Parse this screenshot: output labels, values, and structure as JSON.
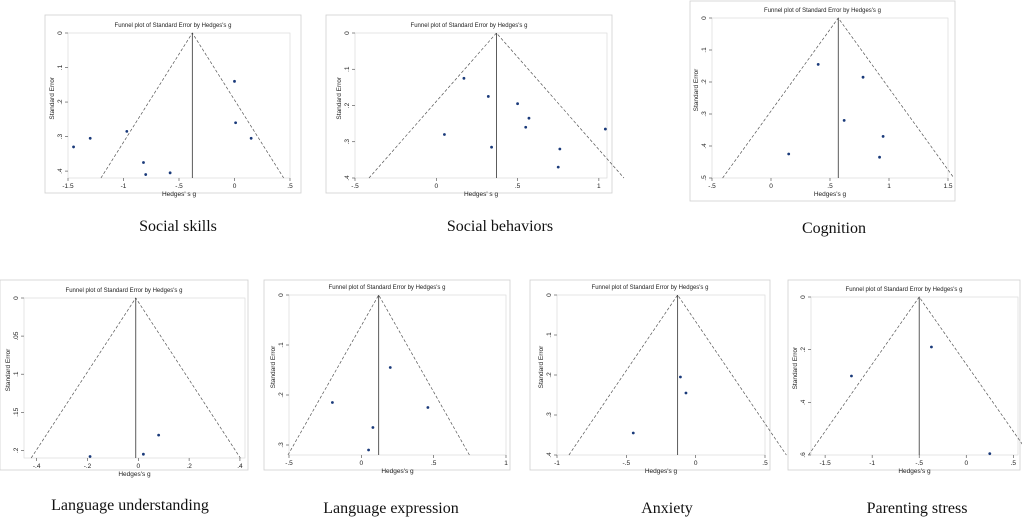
{
  "chart_data": [
    {
      "type": "scatter",
      "caption": "Social skills",
      "title": "Funnel plot of Standard Error by Hedges's g",
      "xlabel": "Hedges' s g",
      "ylabel": "Standard Error",
      "xlim": [
        -1.5,
        0.5
      ],
      "ylim": [
        0,
        0.42
      ],
      "yreverse": true,
      "xticks": [
        -1.5,
        -1,
        -0.5,
        0,
        0.5
      ],
      "xtick_labels": [
        "-1.5",
        "-1",
        "-.5",
        "0",
        ".5"
      ],
      "yticks": [
        0,
        0.1,
        0.2,
        0.3,
        0.4
      ],
      "ytick_labels": [
        "0",
        ".1",
        ".2",
        ".3",
        ".4"
      ],
      "funnel_center": -0.38,
      "x": [
        -1.45,
        -1.3,
        -0.97,
        -0.82,
        -0.8,
        -0.58,
        0,
        0.01,
        0.15
      ],
      "y": [
        0.33,
        0.305,
        0.285,
        0.375,
        0.41,
        0.405,
        0.14,
        0.26,
        0.305
      ]
    },
    {
      "type": "scatter",
      "caption": "Social behaviors",
      "title": "Funnel plot of Standard Error by Hedges's g",
      "xlabel": "Hedges' s g",
      "ylabel": "Standard Error",
      "xlim": [
        -0.5,
        1.05
      ],
      "ylim": [
        0,
        0.4
      ],
      "yreverse": true,
      "xticks": [
        -0.5,
        0,
        0.5,
        1
      ],
      "xtick_labels": [
        "-.5",
        "0",
        ".5",
        "1"
      ],
      "yticks": [
        0,
        0.1,
        0.2,
        0.3,
        0.4
      ],
      "ytick_labels": [
        "0",
        ".1",
        ".2",
        ".3",
        ".4"
      ],
      "funnel_center": 0.37,
      "x": [
        0.17,
        0.32,
        0.05,
        0.34,
        0.5,
        0.55,
        0.57,
        0.76,
        0.75,
        1.04
      ],
      "y": [
        0.125,
        0.175,
        0.28,
        0.315,
        0.195,
        0.26,
        0.235,
        0.32,
        0.37,
        0.265
      ]
    },
    {
      "type": "scatter",
      "caption": "Cognition",
      "title": "Funnel plot of Standard Error by Hedges's g",
      "xlabel": "Hedges's g",
      "ylabel": "Standard Error",
      "xlim": [
        -0.5,
        1.5
      ],
      "ylim": [
        0,
        0.5
      ],
      "yreverse": true,
      "xticks": [
        -0.5,
        0,
        0.5,
        1,
        1.5
      ],
      "xtick_labels": [
        "-.5",
        "0",
        ".5",
        "1",
        "1.5"
      ],
      "yticks": [
        0,
        0.1,
        0.2,
        0.3,
        0.4,
        0.5
      ],
      "ytick_labels": [
        "0",
        ".1",
        ".2",
        ".3",
        ".4",
        ".5"
      ],
      "funnel_center": 0.57,
      "x": [
        0.15,
        0.4,
        0.78,
        0.62,
        0.95,
        0.92
      ],
      "y": [
        0.425,
        0.145,
        0.185,
        0.32,
        0.37,
        0.435
      ]
    },
    {
      "type": "scatter",
      "caption": "Language understanding",
      "title": "Funnel plot of Standard Error by Hedges's g",
      "xlabel": "Hedges's g",
      "ylabel": "Standard Error",
      "xlim": [
        -0.45,
        0.42
      ],
      "ylim": [
        0,
        0.21
      ],
      "yreverse": true,
      "xticks": [
        -0.4,
        -0.2,
        0,
        0.2,
        0.4
      ],
      "xtick_labels": [
        "-.4",
        "-.2",
        "0",
        ".2",
        ".4"
      ],
      "yticks": [
        0,
        0.05,
        0.1,
        0.15,
        0.2
      ],
      "ytick_labels": [
        "0",
        ".05",
        ".1",
        ".15",
        ".2"
      ],
      "funnel_center": -0.01,
      "x": [
        -0.19,
        0.02,
        0.08
      ],
      "y": [
        0.208,
        0.205,
        0.18
      ]
    },
    {
      "type": "scatter",
      "caption": "Language expression",
      "title": "Funnel plot of Standard Error by Hedges's g",
      "xlabel": "Hedges's g",
      "ylabel": "Standard Error",
      "xlim": [
        -0.5,
        1.0
      ],
      "ylim": [
        0,
        0.32
      ],
      "yreverse": true,
      "xticks": [
        -0.5,
        0,
        0.5,
        1
      ],
      "xtick_labels": [
        "-.5",
        "0",
        ".5",
        "1"
      ],
      "yticks": [
        0,
        0.1,
        0.2,
        0.3
      ],
      "ytick_labels": [
        "0",
        ".1",
        ".2",
        ".3"
      ],
      "funnel_center": 0.12,
      "x": [
        -0.2,
        0.05,
        0.08,
        0.2,
        0.46
      ],
      "y": [
        0.215,
        0.31,
        0.265,
        0.145,
        0.225
      ]
    },
    {
      "type": "scatter",
      "caption": "Anxiety",
      "title": "Funnel plot of Standard Error by Hedges's g",
      "xlabel": "Hedges's g",
      "ylabel": "Standard Error",
      "xlim": [
        -1.0,
        0.5
      ],
      "ylim": [
        0,
        0.4
      ],
      "yreverse": true,
      "xticks": [
        -1,
        -0.5,
        0,
        0.5
      ],
      "xtick_labels": [
        "-1",
        "-.5",
        "0",
        ".5"
      ],
      "yticks": [
        0,
        0.1,
        0.2,
        0.3,
        0.4
      ],
      "ytick_labels": [
        "0",
        ".1",
        ".2",
        ".3",
        ".4"
      ],
      "funnel_center": -0.13,
      "x": [
        -0.45,
        -0.11,
        -0.07
      ],
      "y": [
        0.345,
        0.205,
        0.245
      ]
    },
    {
      "type": "scatter",
      "caption": "Parenting stress",
      "title": "Funnel plot of Standard Error by Hedges's g",
      "xlabel": "Hedges's g",
      "ylabel": "Standard Error",
      "xlim": [
        -1.65,
        0.55
      ],
      "ylim": [
        0,
        0.6
      ],
      "yreverse": true,
      "xticks": [
        -1.5,
        -1,
        -0.5,
        0,
        0.5
      ],
      "xtick_labels": [
        "-1.5",
        "-1",
        "-.5",
        "0",
        ".5"
      ],
      "yticks": [
        0,
        0.2,
        0.4,
        0.6
      ],
      "ytick_labels": [
        "0",
        ".2",
        ".4",
        ".6"
      ],
      "funnel_center": -0.5,
      "x": [
        -1.22,
        -0.37,
        0.25
      ],
      "y": [
        0.3,
        0.19,
        0.595
      ]
    }
  ]
}
